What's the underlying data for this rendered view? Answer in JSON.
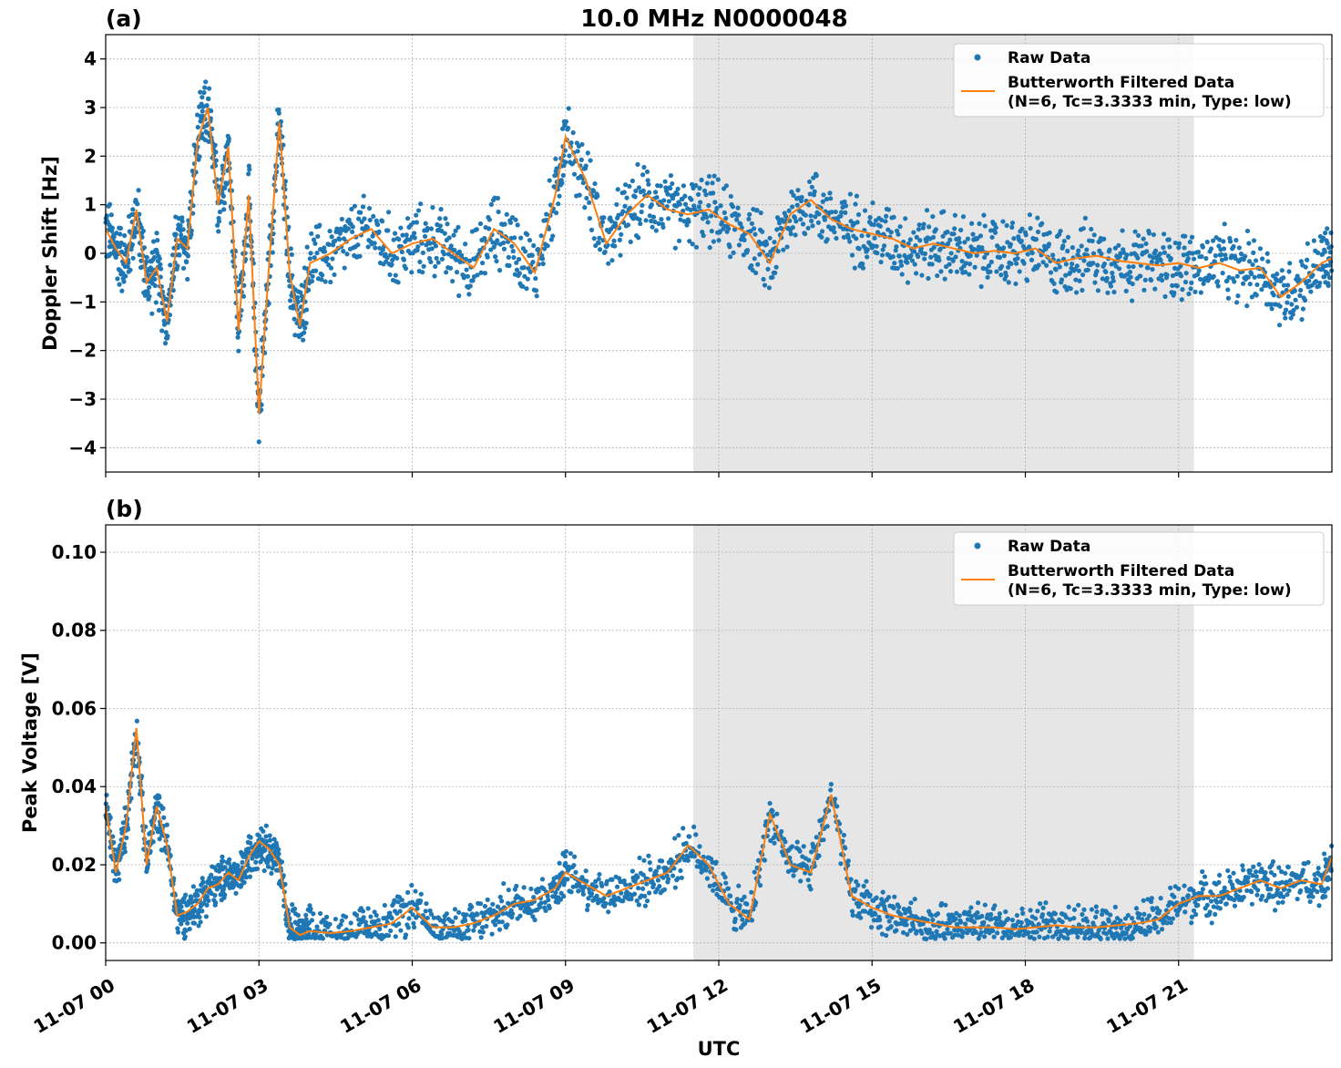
{
  "chart_data": [
    {
      "type": "scatter",
      "panel_label": "(a)",
      "title": "10.0 MHz N0000048",
      "xlabel": "",
      "ylabel": "Doppler Shift [Hz]",
      "xlim": [
        "11-07 00:00",
        "11-08 00:00"
      ],
      "ylim": [
        -4.5,
        4.5
      ],
      "yticks": [
        4,
        3,
        2,
        1,
        0,
        -1,
        -2,
        -3,
        -4
      ],
      "ytick_labels": [
        "4",
        "3",
        "2",
        "1",
        "0",
        "−1",
        "−2",
        "−3",
        "−4"
      ],
      "grid": true,
      "shaded_region": {
        "x_start": 11.5,
        "x_end": 21.3,
        "color": "#e6e6e6"
      },
      "legend": {
        "position": "top-right",
        "entries": [
          "Raw Data",
          "Butterworth Filtered Data",
          "(N=6, Tc=3.3333 min, Type: low)"
        ]
      },
      "series": [
        {
          "name": "Raw Data",
          "kind": "scatter",
          "color": "#1f77b4",
          "x": [
            0,
            0.2,
            0.4,
            0.6,
            0.8,
            1.0,
            1.2,
            1.4,
            1.6,
            1.8,
            2.0,
            2.2,
            2.4,
            2.6,
            2.8,
            3.0,
            3.2,
            3.4,
            3.6,
            3.8,
            4.0,
            4.4,
            4.8,
            5.2,
            5.6,
            6.0,
            6.4,
            6.8,
            7.2,
            7.6,
            8.0,
            8.4,
            8.8,
            9.0,
            9.4,
            9.8,
            10.2,
            10.6,
            11.0,
            11.4,
            11.8,
            12.2,
            12.6,
            13.0,
            13.4,
            13.8,
            14.2,
            14.6,
            15.0,
            15.4,
            15.8,
            16.2,
            16.6,
            17.0,
            17.4,
            17.8,
            18.2,
            18.6,
            19.0,
            19.4,
            19.8,
            20.2,
            20.6,
            21.0,
            21.4,
            21.8,
            22.2,
            22.6,
            23.0,
            23.4,
            23.8,
            24.0
          ],
          "y": [
            0.5,
            0.1,
            -0.2,
            0.9,
            -0.6,
            -0.3,
            -1.4,
            0.3,
            0.1,
            2.3,
            3.0,
            1.0,
            2.2,
            -1.6,
            1.2,
            -3.3,
            -0.2,
            2.7,
            -0.4,
            -1.5,
            -0.2,
            0.0,
            0.3,
            0.5,
            0.0,
            0.2,
            0.3,
            0.0,
            -0.3,
            0.5,
            0.2,
            -0.4,
            1.2,
            2.4,
            1.5,
            0.2,
            0.8,
            1.2,
            0.9,
            0.8,
            0.9,
            0.6,
            0.4,
            -0.2,
            0.8,
            1.1,
            0.7,
            0.5,
            0.4,
            0.3,
            0.1,
            0.2,
            0.1,
            0.0,
            0.05,
            0.0,
            0.1,
            -0.2,
            -0.1,
            -0.05,
            -0.15,
            -0.2,
            -0.25,
            -0.2,
            -0.3,
            -0.2,
            -0.35,
            -0.3,
            -0.9,
            -0.6,
            -0.2,
            -0.1
          ]
        },
        {
          "name": "Butterworth Filtered Data",
          "kind": "line",
          "color": "#ff7f0e",
          "x": [
            0,
            0.2,
            0.4,
            0.6,
            0.8,
            1.0,
            1.2,
            1.4,
            1.6,
            1.8,
            2.0,
            2.2,
            2.4,
            2.6,
            2.8,
            3.0,
            3.2,
            3.4,
            3.6,
            3.8,
            4.0,
            4.4,
            4.8,
            5.2,
            5.6,
            6.0,
            6.4,
            6.8,
            7.2,
            7.6,
            8.0,
            8.4,
            8.8,
            9.0,
            9.4,
            9.8,
            10.2,
            10.6,
            11.0,
            11.4,
            11.8,
            12.2,
            12.6,
            13.0,
            13.4,
            13.8,
            14.2,
            14.6,
            15.0,
            15.4,
            15.8,
            16.2,
            16.6,
            17.0,
            17.4,
            17.8,
            18.2,
            18.6,
            19.0,
            19.4,
            19.8,
            20.2,
            20.6,
            21.0,
            21.4,
            21.8,
            22.2,
            22.6,
            23.0,
            23.4,
            23.8,
            24.0
          ],
          "y": [
            0.5,
            0.1,
            -0.2,
            0.9,
            -0.6,
            -0.3,
            -1.4,
            0.3,
            0.1,
            2.3,
            3.0,
            1.0,
            2.2,
            -1.6,
            1.2,
            -3.3,
            -0.2,
            2.7,
            -0.4,
            -1.5,
            -0.2,
            0.0,
            0.3,
            0.5,
            0.0,
            0.2,
            0.3,
            0.0,
            -0.3,
            0.5,
            0.2,
            -0.4,
            1.2,
            2.4,
            1.5,
            0.2,
            0.8,
            1.2,
            0.9,
            0.8,
            0.9,
            0.6,
            0.4,
            -0.2,
            0.8,
            1.1,
            0.7,
            0.5,
            0.4,
            0.3,
            0.1,
            0.2,
            0.1,
            0.0,
            0.05,
            0.0,
            0.1,
            -0.2,
            -0.1,
            -0.05,
            -0.15,
            -0.2,
            -0.25,
            -0.2,
            -0.3,
            -0.2,
            -0.35,
            -0.3,
            -0.9,
            -0.6,
            -0.2,
            -0.1
          ]
        }
      ]
    },
    {
      "type": "scatter",
      "panel_label": "(b)",
      "title": "",
      "xlabel": "UTC",
      "ylabel": "Peak Voltage [V]",
      "xlim": [
        "11-07 00:00",
        "11-08 00:00"
      ],
      "ylim": [
        -0.0045,
        0.107
      ],
      "yticks": [
        0.1,
        0.08,
        0.06,
        0.04,
        0.02,
        0.0
      ],
      "ytick_labels": [
        "0.10",
        "0.08",
        "0.06",
        "0.04",
        "0.02",
        "0.00"
      ],
      "xticks": [
        0,
        3,
        6,
        9,
        12,
        15,
        18,
        21
      ],
      "xtick_labels": [
        "11-07 00",
        "11-07 03",
        "11-07 06",
        "11-07 09",
        "11-07 12",
        "11-07 15",
        "11-07 18",
        "11-07 21"
      ],
      "grid": true,
      "shaded_region": {
        "x_start": 11.5,
        "x_end": 21.3,
        "color": "#e6e6e6"
      },
      "legend": {
        "position": "top-right",
        "entries": [
          "Raw Data",
          "Butterworth Filtered Data",
          "(N=6, Tc=3.3333 min, Type: low)"
        ]
      },
      "series": [
        {
          "name": "Raw Data",
          "kind": "scatter",
          "color": "#1f77b4",
          "x": [
            0,
            0.2,
            0.4,
            0.6,
            0.8,
            1.0,
            1.2,
            1.4,
            1.6,
            1.8,
            2.0,
            2.2,
            2.4,
            2.6,
            2.8,
            3.0,
            3.2,
            3.4,
            3.6,
            3.8,
            4.0,
            4.4,
            4.8,
            5.2,
            5.6,
            6.0,
            6.4,
            6.8,
            7.2,
            7.6,
            8.0,
            8.4,
            8.8,
            9.0,
            9.4,
            9.8,
            10.2,
            10.6,
            11.0,
            11.4,
            11.8,
            12.2,
            12.6,
            13.0,
            13.4,
            13.8,
            14.2,
            14.6,
            15.0,
            15.4,
            15.8,
            16.2,
            16.6,
            17.0,
            17.4,
            17.8,
            18.2,
            18.6,
            19.0,
            19.4,
            19.8,
            20.2,
            20.6,
            21.0,
            21.4,
            21.8,
            22.2,
            22.6,
            23.0,
            23.4,
            23.8,
            24.0
          ],
          "y": [
            0.035,
            0.018,
            0.03,
            0.055,
            0.02,
            0.035,
            0.025,
            0.007,
            0.008,
            0.01,
            0.014,
            0.015,
            0.018,
            0.016,
            0.022,
            0.026,
            0.024,
            0.02,
            0.004,
            0.002,
            0.003,
            0.0025,
            0.003,
            0.004,
            0.005,
            0.009,
            0.004,
            0.004,
            0.005,
            0.007,
            0.01,
            0.011,
            0.014,
            0.018,
            0.015,
            0.012,
            0.014,
            0.016,
            0.018,
            0.025,
            0.02,
            0.01,
            0.006,
            0.033,
            0.02,
            0.018,
            0.038,
            0.012,
            0.009,
            0.007,
            0.006,
            0.005,
            0.004,
            0.004,
            0.004,
            0.0035,
            0.004,
            0.0045,
            0.004,
            0.004,
            0.0045,
            0.005,
            0.006,
            0.01,
            0.012,
            0.012,
            0.014,
            0.016,
            0.014,
            0.016,
            0.015,
            0.022
          ]
        },
        {
          "name": "Butterworth Filtered Data",
          "kind": "line",
          "color": "#ff7f0e",
          "x": [
            0,
            0.2,
            0.4,
            0.6,
            0.8,
            1.0,
            1.2,
            1.4,
            1.6,
            1.8,
            2.0,
            2.2,
            2.4,
            2.6,
            2.8,
            3.0,
            3.2,
            3.4,
            3.6,
            3.8,
            4.0,
            4.4,
            4.8,
            5.2,
            5.6,
            6.0,
            6.4,
            6.8,
            7.2,
            7.6,
            8.0,
            8.4,
            8.8,
            9.0,
            9.4,
            9.8,
            10.2,
            10.6,
            11.0,
            11.4,
            11.8,
            12.2,
            12.6,
            13.0,
            13.4,
            13.8,
            14.2,
            14.6,
            15.0,
            15.4,
            15.8,
            16.2,
            16.6,
            17.0,
            17.4,
            17.8,
            18.2,
            18.6,
            19.0,
            19.4,
            19.8,
            20.2,
            20.6,
            21.0,
            21.4,
            21.8,
            22.2,
            22.6,
            23.0,
            23.4,
            23.8,
            24.0
          ],
          "y": [
            0.035,
            0.018,
            0.03,
            0.055,
            0.02,
            0.035,
            0.025,
            0.007,
            0.008,
            0.01,
            0.014,
            0.015,
            0.018,
            0.016,
            0.022,
            0.026,
            0.024,
            0.02,
            0.004,
            0.002,
            0.003,
            0.0025,
            0.003,
            0.004,
            0.005,
            0.009,
            0.004,
            0.004,
            0.005,
            0.007,
            0.01,
            0.011,
            0.014,
            0.018,
            0.015,
            0.012,
            0.014,
            0.016,
            0.018,
            0.025,
            0.02,
            0.01,
            0.006,
            0.033,
            0.02,
            0.018,
            0.038,
            0.012,
            0.009,
            0.007,
            0.006,
            0.005,
            0.004,
            0.004,
            0.004,
            0.0035,
            0.004,
            0.0045,
            0.004,
            0.004,
            0.0045,
            0.005,
            0.006,
            0.01,
            0.012,
            0.012,
            0.014,
            0.016,
            0.014,
            0.016,
            0.015,
            0.022
          ]
        }
      ]
    }
  ]
}
